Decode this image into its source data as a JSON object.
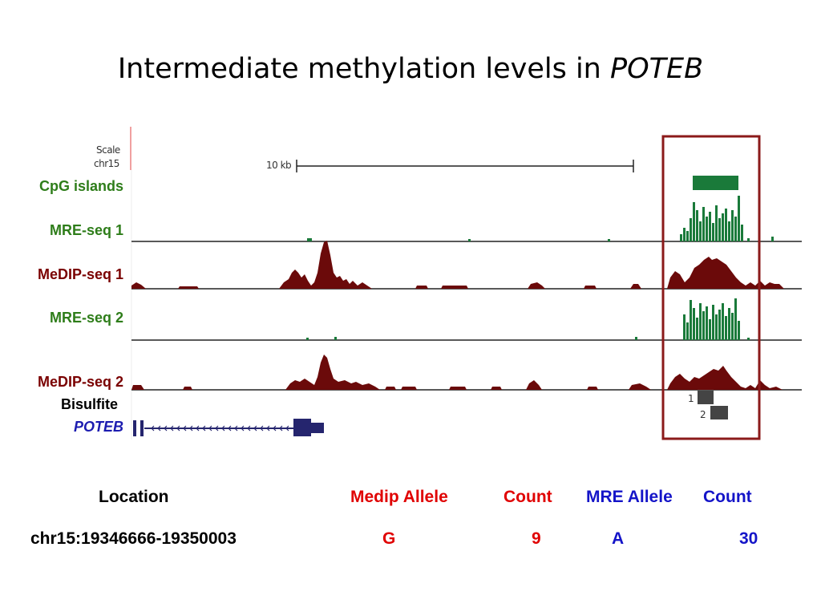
{
  "title": {
    "text": "Intermediate methylation levels in ",
    "gene": "POTEB"
  },
  "browser": {
    "scale_label": "Scale",
    "chrom_label": "chr15",
    "scale_bar_label": "10 kb",
    "tracks": [
      {
        "name": "CpG islands",
        "color": "#2e7d1a"
      },
      {
        "name": "MRE-seq 1",
        "color": "#2e7d1a"
      },
      {
        "name": "MeDIP-seq 1",
        "color": "#7a0000"
      },
      {
        "name": "MRE-seq 2",
        "color": "#2e7d1a"
      },
      {
        "name": "MeDIP-seq 2",
        "color": "#7a0000"
      },
      {
        "name": "Bisulfite",
        "color": "#000000"
      },
      {
        "name": "POTEB",
        "color": "#1c1cb0"
      }
    ],
    "bisulfite_items": [
      "1",
      "2"
    ],
    "highlight_color": "#8b1a1a"
  },
  "table": {
    "headers": {
      "location": "Location",
      "medip_allele": "Medip Allele",
      "medip_count": "Count",
      "mre_allele": "MRE Allele",
      "mre_count": "Count"
    },
    "rows": [
      {
        "location": "chr15:19346666-19350003",
        "medip_allele": "G",
        "medip_count": "9",
        "mre_allele": "A",
        "mre_count": "30"
      }
    ]
  }
}
